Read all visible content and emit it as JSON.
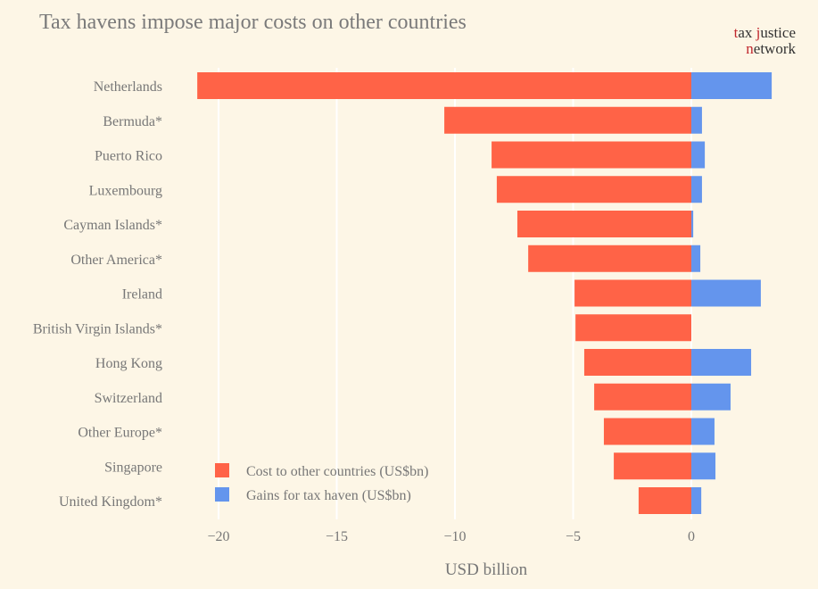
{
  "chart_data": {
    "type": "bar",
    "orientation": "horizontal",
    "title": "Tax havens impose major costs on other countries",
    "xlabel": "USD billion",
    "ylabel": "",
    "xlim": [
      -22.4,
      4.9
    ],
    "xticks": [
      -20,
      -15,
      -10,
      -5,
      0
    ],
    "xtick_labels": [
      "−20",
      "−15",
      "−10",
      "−5",
      "0"
    ],
    "grid": true,
    "legend_position": "bottom-left",
    "categories": [
      "Netherlands",
      "Bermuda*",
      "Puerto Rico",
      "Luxembourg",
      "Cayman Islands*",
      "Other America*",
      "Ireland",
      "British Virgin Islands*",
      "Hong Kong",
      "Switzerland",
      "Other Europe*",
      "Singapore",
      "United Kingdom*"
    ],
    "series": [
      {
        "name": "Cost to other countries (US$bn)",
        "color": "#ff6347",
        "values": [
          -20.9,
          -10.45,
          -8.45,
          -8.23,
          -7.36,
          -6.9,
          -4.94,
          -4.9,
          -4.53,
          -4.11,
          -3.7,
          -3.28,
          -2.23
        ]
      },
      {
        "name": "Gains for tax haven (US$bn)",
        "color": "#6495ed",
        "values": [
          3.4,
          0.45,
          0.57,
          0.45,
          0.08,
          0.38,
          2.94,
          0.0,
          2.53,
          1.66,
          0.98,
          1.02,
          0.42
        ]
      }
    ]
  },
  "logo": {
    "line1_a": "t",
    "line1_b": "ax ",
    "line1_c": "j",
    "line1_d": "ustice",
    "line2_a": "n",
    "line2_b": "etwork"
  }
}
